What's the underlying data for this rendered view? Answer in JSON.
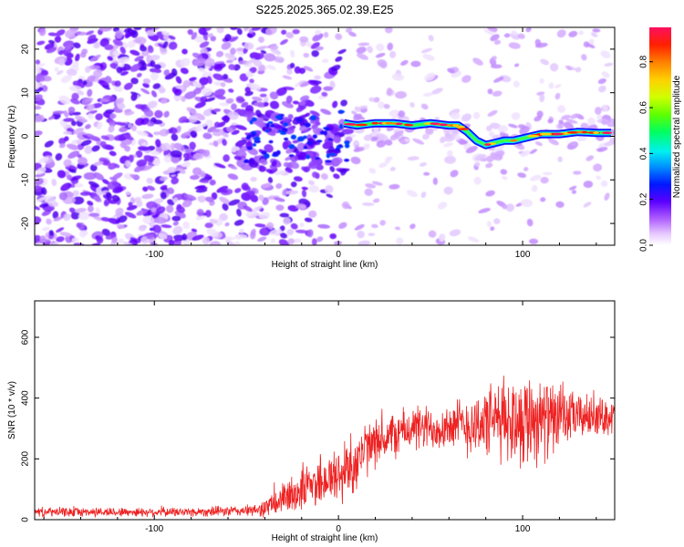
{
  "title": "S225.2025.365.02.39.E25",
  "chart_data": [
    {
      "type": "heatmap",
      "xlabel": "Height of straight line (km)",
      "ylabel": "Frequency (Hz)",
      "xlim": [
        -165,
        150
      ],
      "ylim": [
        -25,
        25
      ],
      "xticks": [
        -100,
        0,
        100
      ],
      "yticks": [
        -20,
        -10,
        0,
        10,
        20
      ],
      "colorbar": {
        "label": "Normalized spectral amplitude",
        "range": [
          0,
          0.95
        ],
        "ticks": [
          0.0,
          0.2,
          0.4,
          0.6,
          0.8
        ]
      },
      "signal_track": {
        "x": [
          3,
          10,
          20,
          30,
          40,
          50,
          60,
          65,
          70,
          75,
          80,
          85,
          90,
          95,
          100,
          105,
          110,
          120,
          130,
          140,
          148
        ],
        "y": [
          3,
          2.5,
          3,
          3,
          2.5,
          3,
          2.5,
          2.5,
          1,
          -1,
          -2,
          -1.5,
          -1,
          -1,
          -0.5,
          0,
          0.5,
          0.5,
          1,
          0.8,
          0.8
        ]
      }
    },
    {
      "type": "line",
      "xlabel": "Height of straight line (km)",
      "ylabel": "SNR (10 * v/v)",
      "xlim": [
        -165,
        150
      ],
      "ylim": [
        0,
        720
      ],
      "xticks": [
        -100,
        0,
        100
      ],
      "yticks": [
        0,
        200,
        400,
        600
      ],
      "series": [
        {
          "color": "#ee2222",
          "envelope_x": [
            -165,
            -120,
            -80,
            -45,
            -35,
            -20,
            -10,
            0,
            10,
            15,
            20,
            30,
            40,
            50,
            60,
            70,
            80,
            90,
            100,
            105,
            110,
            120,
            130,
            140,
            150
          ],
          "envelope_y": [
            25,
            25,
            25,
            30,
            50,
            100,
            130,
            140,
            200,
            230,
            250,
            280,
            300,
            300,
            310,
            310,
            320,
            330,
            330,
            340,
            330,
            330,
            340,
            340,
            340
          ],
          "noise_amplitude": [
            12,
            12,
            12,
            15,
            35,
            60,
            70,
            80,
            90,
            70,
            60,
            60,
            60,
            60,
            60,
            80,
            90,
            110,
            120,
            130,
            110,
            80,
            60,
            50,
            45
          ]
        }
      ]
    }
  ]
}
